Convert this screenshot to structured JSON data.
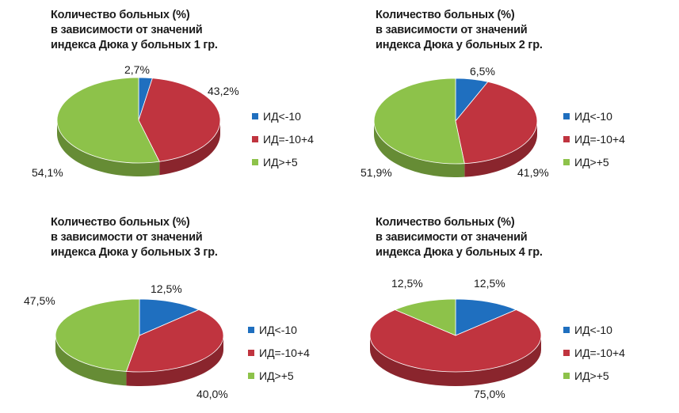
{
  "chart_data": [
    {
      "type": "pie",
      "title": "Количество больных (%)\nв зависимости от значений\nиндекса Дюка у больных 1 гр.",
      "categories": [
        "ИД<-10",
        "ИД=-10+4",
        "ИД>+5"
      ],
      "values": [
        2.7,
        43.2,
        54.1
      ],
      "labels": [
        "2,7%",
        "43,2%",
        "54,1%"
      ],
      "colors": [
        "#1f6fbf",
        "#c0343f",
        "#8dc24a"
      ],
      "legend": "right"
    },
    {
      "type": "pie",
      "title": "Количество больных (%)\nв зависимости от значений\nиндекса Дюка у больных 2 гр.",
      "categories": [
        "ИД<-10",
        "ИД=-10+4",
        "ИД>+5"
      ],
      "values": [
        6.5,
        41.9,
        51.9
      ],
      "labels": [
        "6,5%",
        "41,9%",
        "51,9%"
      ],
      "colors": [
        "#1f6fbf",
        "#c0343f",
        "#8dc24a"
      ],
      "legend": "right"
    },
    {
      "type": "pie",
      "title": "Количество больных (%)\nв зависимости от значений\nиндекса Дюка у больных 3 гр.",
      "categories": [
        "ИД<-10",
        "ИД=-10+4",
        "ИД>+5"
      ],
      "values": [
        12.5,
        40.0,
        47.5
      ],
      "labels": [
        "12,5%",
        "40,0%",
        "47,5%"
      ],
      "colors": [
        "#1f6fbf",
        "#c0343f",
        "#8dc24a"
      ],
      "legend": "right"
    },
    {
      "type": "pie",
      "title": "Количество больных (%)\nв зависимости от значений\nиндекса Дюка у больных 4 гр.",
      "categories": [
        "ИД<-10",
        "ИД=-10+4",
        "ИД>+5"
      ],
      "values": [
        12.5,
        75.0,
        12.5
      ],
      "labels": [
        "12,5%",
        "75,0%",
        "12,5%"
      ],
      "colors": [
        "#1f6fbf",
        "#c0343f",
        "#8dc24a"
      ],
      "legend": "right"
    }
  ]
}
